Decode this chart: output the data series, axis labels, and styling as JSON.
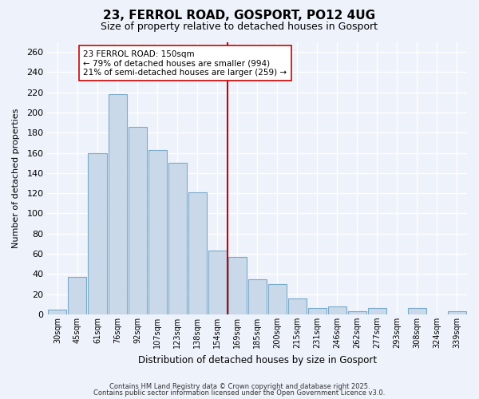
{
  "title": "23, FERROL ROAD, GOSPORT, PO12 4UG",
  "subtitle": "Size of property relative to detached houses in Gosport",
  "xlabel": "Distribution of detached houses by size in Gosport",
  "ylabel": "Number of detached properties",
  "bar_labels": [
    "30sqm",
    "45sqm",
    "61sqm",
    "76sqm",
    "92sqm",
    "107sqm",
    "123sqm",
    "138sqm",
    "154sqm",
    "169sqm",
    "185sqm",
    "200sqm",
    "215sqm",
    "231sqm",
    "246sqm",
    "262sqm",
    "277sqm",
    "293sqm",
    "308sqm",
    "324sqm",
    "339sqm"
  ],
  "bar_values": [
    5,
    37,
    160,
    218,
    186,
    163,
    150,
    121,
    63,
    57,
    35,
    30,
    16,
    6,
    8,
    3,
    6,
    0,
    6,
    0,
    3
  ],
  "bar_color": "#c9d9ea",
  "bar_edge_color": "#7aaac8",
  "vline_x": 8.5,
  "vline_color": "#cc0000",
  "annotation_text": "23 FERROL ROAD: 150sqm\n← 79% of detached houses are smaller (994)\n21% of semi-detached houses are larger (259) →",
  "annotation_box_color": "#ffffff",
  "annotation_box_edge": "#cc0000",
  "ylim": [
    0,
    270
  ],
  "yticks": [
    0,
    20,
    40,
    60,
    80,
    100,
    120,
    140,
    160,
    180,
    200,
    220,
    240,
    260
  ],
  "background_color": "#eef2fb",
  "grid_color": "#ffffff",
  "footer_line1": "Contains HM Land Registry data © Crown copyright and database right 2025.",
  "footer_line2": "Contains public sector information licensed under the Open Government Licence v3.0."
}
